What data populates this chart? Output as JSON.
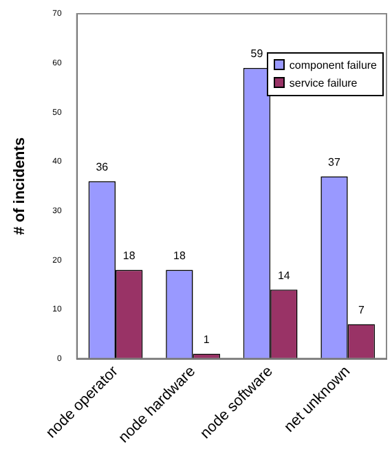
{
  "chart_data": {
    "type": "bar",
    "ylabel": "# of incidents",
    "categories": [
      "node operator",
      "node hardware",
      "node software",
      "net unknown"
    ],
    "series": [
      {
        "name": "component failure",
        "color": "#9999ff",
        "values": [
          36,
          18,
          59,
          37
        ]
      },
      {
        "name": "service failure",
        "color": "#993366",
        "values": [
          18,
          1,
          14,
          7
        ]
      }
    ],
    "ylim": [
      0,
      70
    ],
    "yticks": [
      0,
      10,
      20,
      30,
      40,
      50,
      60,
      70
    ],
    "grid": false,
    "legend": "top right",
    "data_labels": true
  }
}
